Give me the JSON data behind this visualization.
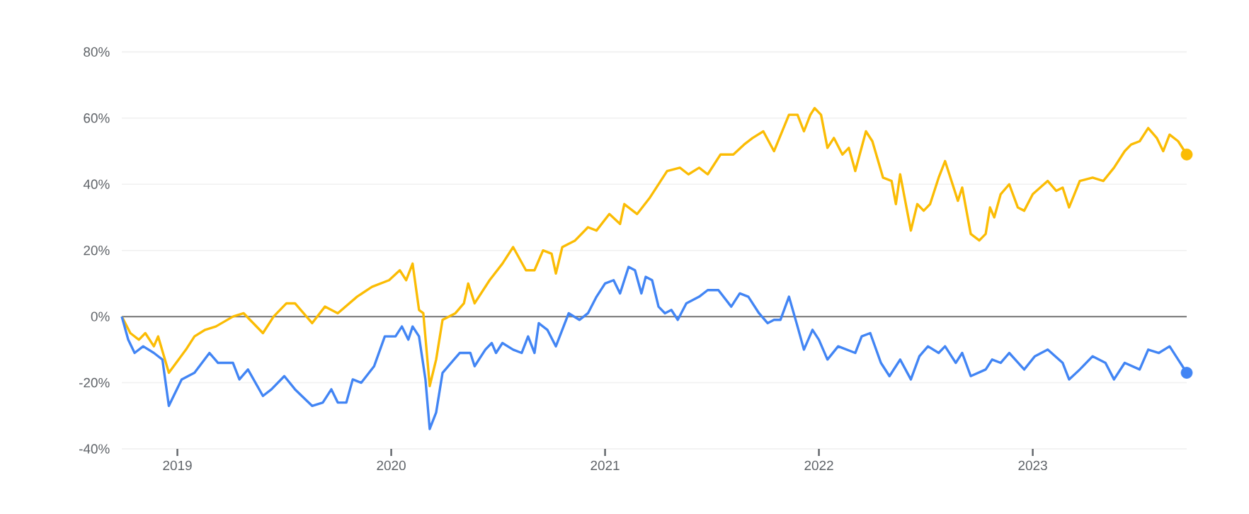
{
  "chart_data": {
    "type": "line",
    "xlim": [
      2018.74,
      2023.72
    ],
    "xticks": [
      2019,
      2020,
      2021,
      2022,
      2023
    ],
    "ylim": [
      -40,
      80
    ],
    "yticks": [
      {
        "value": -40,
        "label": "-40%"
      },
      {
        "value": -20,
        "label": "-20%"
      },
      {
        "value": 0,
        "label": "0%"
      },
      {
        "value": 20,
        "label": "20%"
      },
      {
        "value": 40,
        "label": "40%"
      },
      {
        "value": 60,
        "label": "60%"
      },
      {
        "value": 80,
        "label": "80%"
      }
    ],
    "grid": "y",
    "ref_lines": [
      {
        "axis": "y",
        "value": 0,
        "color": "#757575"
      }
    ],
    "series": [
      {
        "color": "#fbbc04",
        "x": [
          2018.74,
          2018.78,
          2018.82,
          2018.85,
          2018.89,
          2018.91,
          2018.96,
          2019.04,
          2019.08,
          2019.13,
          2019.18,
          2019.26,
          2019.31,
          2019.4,
          2019.45,
          2019.51,
          2019.55,
          2019.63,
          2019.69,
          2019.75,
          2019.84,
          2019.91,
          2019.99,
          2020.04,
          2020.07,
          2020.1,
          2020.13,
          2020.15,
          2020.18,
          2020.21,
          2020.24,
          2020.3,
          2020.34,
          2020.36,
          2020.39,
          2020.46,
          2020.52,
          2020.57,
          2020.63,
          2020.67,
          2020.71,
          2020.75,
          2020.77,
          2020.8,
          2020.86,
          2020.92,
          2020.96,
          2021.02,
          2021.07,
          2021.09,
          2021.15,
          2021.21,
          2021.26,
          2021.29,
          2021.35,
          2021.39,
          2021.44,
          2021.48,
          2021.54,
          2021.6,
          2021.65,
          2021.69,
          2021.74,
          2021.79,
          2021.86,
          2021.9,
          2021.93,
          2021.96,
          2021.98,
          2022.01,
          2022.04,
          2022.07,
          2022.11,
          2022.14,
          2022.17,
          2022.22,
          2022.25,
          2022.3,
          2022.34,
          2022.36,
          2022.38,
          2022.43,
          2022.46,
          2022.49,
          2022.52,
          2022.56,
          2022.59,
          2022.65,
          2022.67,
          2022.71,
          2022.75,
          2022.78,
          2022.8,
          2022.82,
          2022.85,
          2022.89,
          2022.93,
          2022.96,
          2023.0,
          2023.07,
          2023.11,
          2023.14,
          2023.17,
          2023.22,
          2023.28,
          2023.33,
          2023.38,
          2023.43,
          2023.46,
          2023.5,
          2023.54,
          2023.58,
          2023.61,
          2023.64,
          2023.68,
          2023.72
        ],
        "values": [
          0,
          -5,
          -7,
          -5,
          -9,
          -6,
          -17,
          -10,
          -6,
          -4,
          -3,
          0,
          1,
          -5,
          0,
          4,
          4,
          -2,
          3,
          1,
          6,
          9,
          11,
          14,
          11,
          16,
          2,
          1,
          -21,
          -13,
          -1,
          1,
          4,
          10,
          4,
          11,
          16,
          21,
          14,
          14,
          20,
          19,
          13,
          21,
          23,
          27,
          26,
          31,
          28,
          34,
          31,
          36,
          41,
          44,
          45,
          43,
          45,
          43,
          49,
          49,
          52,
          54,
          56,
          50,
          61,
          61,
          56,
          61,
          63,
          61,
          51,
          54,
          49,
          51,
          44,
          56,
          53,
          42,
          41,
          34,
          43,
          26,
          34,
          32,
          34,
          42,
          47,
          35,
          39,
          25,
          23,
          25,
          33,
          30,
          37,
          40,
          33,
          32,
          37,
          41,
          38,
          39,
          33,
          41,
          42,
          41,
          45,
          50,
          52,
          53,
          57,
          54,
          50,
          55,
          53,
          49
        ]
      },
      {
        "color": "#4285f4",
        "x": [
          2018.74,
          2018.77,
          2018.8,
          2018.84,
          2018.89,
          2018.93,
          2018.96,
          2019.02,
          2019.08,
          2019.15,
          2019.19,
          2019.26,
          2019.29,
          2019.33,
          2019.4,
          2019.44,
          2019.5,
          2019.55,
          2019.63,
          2019.68,
          2019.72,
          2019.75,
          2019.79,
          2019.82,
          2019.86,
          2019.92,
          2019.97,
          2020.02,
          2020.05,
          2020.08,
          2020.1,
          2020.13,
          2020.16,
          2020.18,
          2020.21,
          2020.24,
          2020.32,
          2020.37,
          2020.39,
          2020.44,
          2020.47,
          2020.49,
          2020.52,
          2020.57,
          2020.61,
          2020.64,
          2020.67,
          2020.69,
          2020.73,
          2020.77,
          2020.83,
          2020.88,
          2020.92,
          2020.96,
          2021.0,
          2021.04,
          2021.07,
          2021.11,
          2021.14,
          2021.17,
          2021.19,
          2021.22,
          2021.25,
          2021.28,
          2021.31,
          2021.34,
          2021.38,
          2021.44,
          2021.48,
          2021.53,
          2021.59,
          2021.63,
          2021.67,
          2021.72,
          2021.76,
          2021.79,
          2021.82,
          2021.86,
          2021.9,
          2021.93,
          2021.97,
          2022.0,
          2022.04,
          2022.09,
          2022.17,
          2022.2,
          2022.24,
          2022.29,
          2022.33,
          2022.38,
          2022.43,
          2022.47,
          2022.51,
          2022.56,
          2022.59,
          2022.64,
          2022.67,
          2022.71,
          2022.78,
          2022.81,
          2022.85,
          2022.89,
          2022.96,
          2023.01,
          2023.07,
          2023.14,
          2023.17,
          2023.22,
          2023.28,
          2023.34,
          2023.38,
          2023.43,
          2023.5,
          2023.54,
          2023.59,
          2023.64,
          2023.68,
          2023.72
        ],
        "values": [
          0,
          -7,
          -11,
          -9,
          -11,
          -13,
          -27,
          -19,
          -17,
          -11,
          -14,
          -14,
          -19,
          -16,
          -24,
          -22,
          -18,
          -22,
          -27,
          -26,
          -22,
          -26,
          -26,
          -19,
          -20,
          -15,
          -6,
          -6,
          -3,
          -7,
          -3,
          -6,
          -19,
          -34,
          -29,
          -17,
          -11,
          -11,
          -15,
          -10,
          -8,
          -11,
          -8,
          -10,
          -11,
          -6,
          -11,
          -2,
          -4,
          -9,
          1,
          -1,
          1,
          6,
          10,
          11,
          7,
          15,
          14,
          7,
          12,
          11,
          3,
          1,
          2,
          -1,
          4,
          6,
          8,
          8,
          3,
          7,
          6,
          1,
          -2,
          -1,
          -1,
          6,
          -3,
          -10,
          -4,
          -7,
          -13,
          -9,
          -11,
          -6,
          -5,
          -14,
          -18,
          -13,
          -19,
          -12,
          -9,
          -11,
          -9,
          -14,
          -11,
          -18,
          -16,
          -13,
          -14,
          -11,
          -16,
          -12,
          -10,
          -14,
          -19,
          -16,
          -12,
          -14,
          -19,
          -14,
          -16,
          -10,
          -11,
          -9,
          -13,
          -17
        ]
      }
    ]
  }
}
